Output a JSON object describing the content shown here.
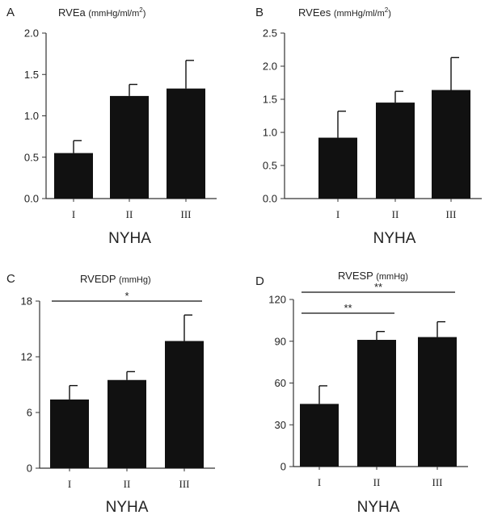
{
  "chart_data": [
    {
      "type": "bar",
      "panel_label": "A",
      "title": "RVEa",
      "title_unit": "(mmHg/ml/m",
      "title_unit_sup": "2",
      "title_unit_end": ")",
      "categories": [
        "I",
        "II",
        "III"
      ],
      "values": [
        0.55,
        1.24,
        1.33
      ],
      "errors": [
        0.15,
        0.14,
        0.34
      ],
      "xlabel": "NYHA",
      "ylim": [
        0,
        2.0
      ],
      "yticks": [
        "0.0",
        "0.5",
        "1.0",
        "1.5",
        "2.0"
      ],
      "significance": []
    },
    {
      "type": "bar",
      "panel_label": "B",
      "title": "RVEes",
      "title_unit": "(mmHg/ml/m",
      "title_unit_sup": "2",
      "title_unit_end": ")",
      "categories": [
        "I",
        "II",
        "III"
      ],
      "values": [
        0.92,
        1.45,
        1.64
      ],
      "errors": [
        0.4,
        0.17,
        0.49
      ],
      "xlabel": "NYHA",
      "ylim": [
        0,
        2.5
      ],
      "yticks": [
        "0.0",
        "0.5",
        "1.0",
        "1.5",
        "2.0",
        "2.5"
      ],
      "significance": []
    },
    {
      "type": "bar",
      "panel_label": "C",
      "title": "RVEDP",
      "title_unit": "(mmHg)",
      "title_unit_sup": "",
      "title_unit_end": "",
      "categories": [
        "I",
        "II",
        "III"
      ],
      "values": [
        7.4,
        9.5,
        13.7
      ],
      "errors": [
        1.5,
        0.9,
        2.8
      ],
      "xlabel": "NYHA",
      "ylim": [
        0,
        18
      ],
      "yticks": [
        "0",
        "6",
        "12",
        "18"
      ],
      "significance": [
        {
          "from": 0,
          "to": 2,
          "label": "*"
        }
      ]
    },
    {
      "type": "bar",
      "panel_label": "D",
      "title": "RVESP",
      "title_unit": "(mmHg)",
      "title_unit_sup": "",
      "title_unit_end": "",
      "categories": [
        "I",
        "II",
        "III"
      ],
      "values": [
        45,
        91,
        93
      ],
      "errors": [
        13,
        6,
        11
      ],
      "xlabel": "NYHA",
      "ylim": [
        0,
        120
      ],
      "yticks": [
        "0",
        "30",
        "60",
        "90",
        "120"
      ],
      "significance": [
        {
          "from": 0,
          "to": 1,
          "label": "**"
        },
        {
          "from": 0,
          "to": 2,
          "label": "**"
        }
      ]
    }
  ]
}
